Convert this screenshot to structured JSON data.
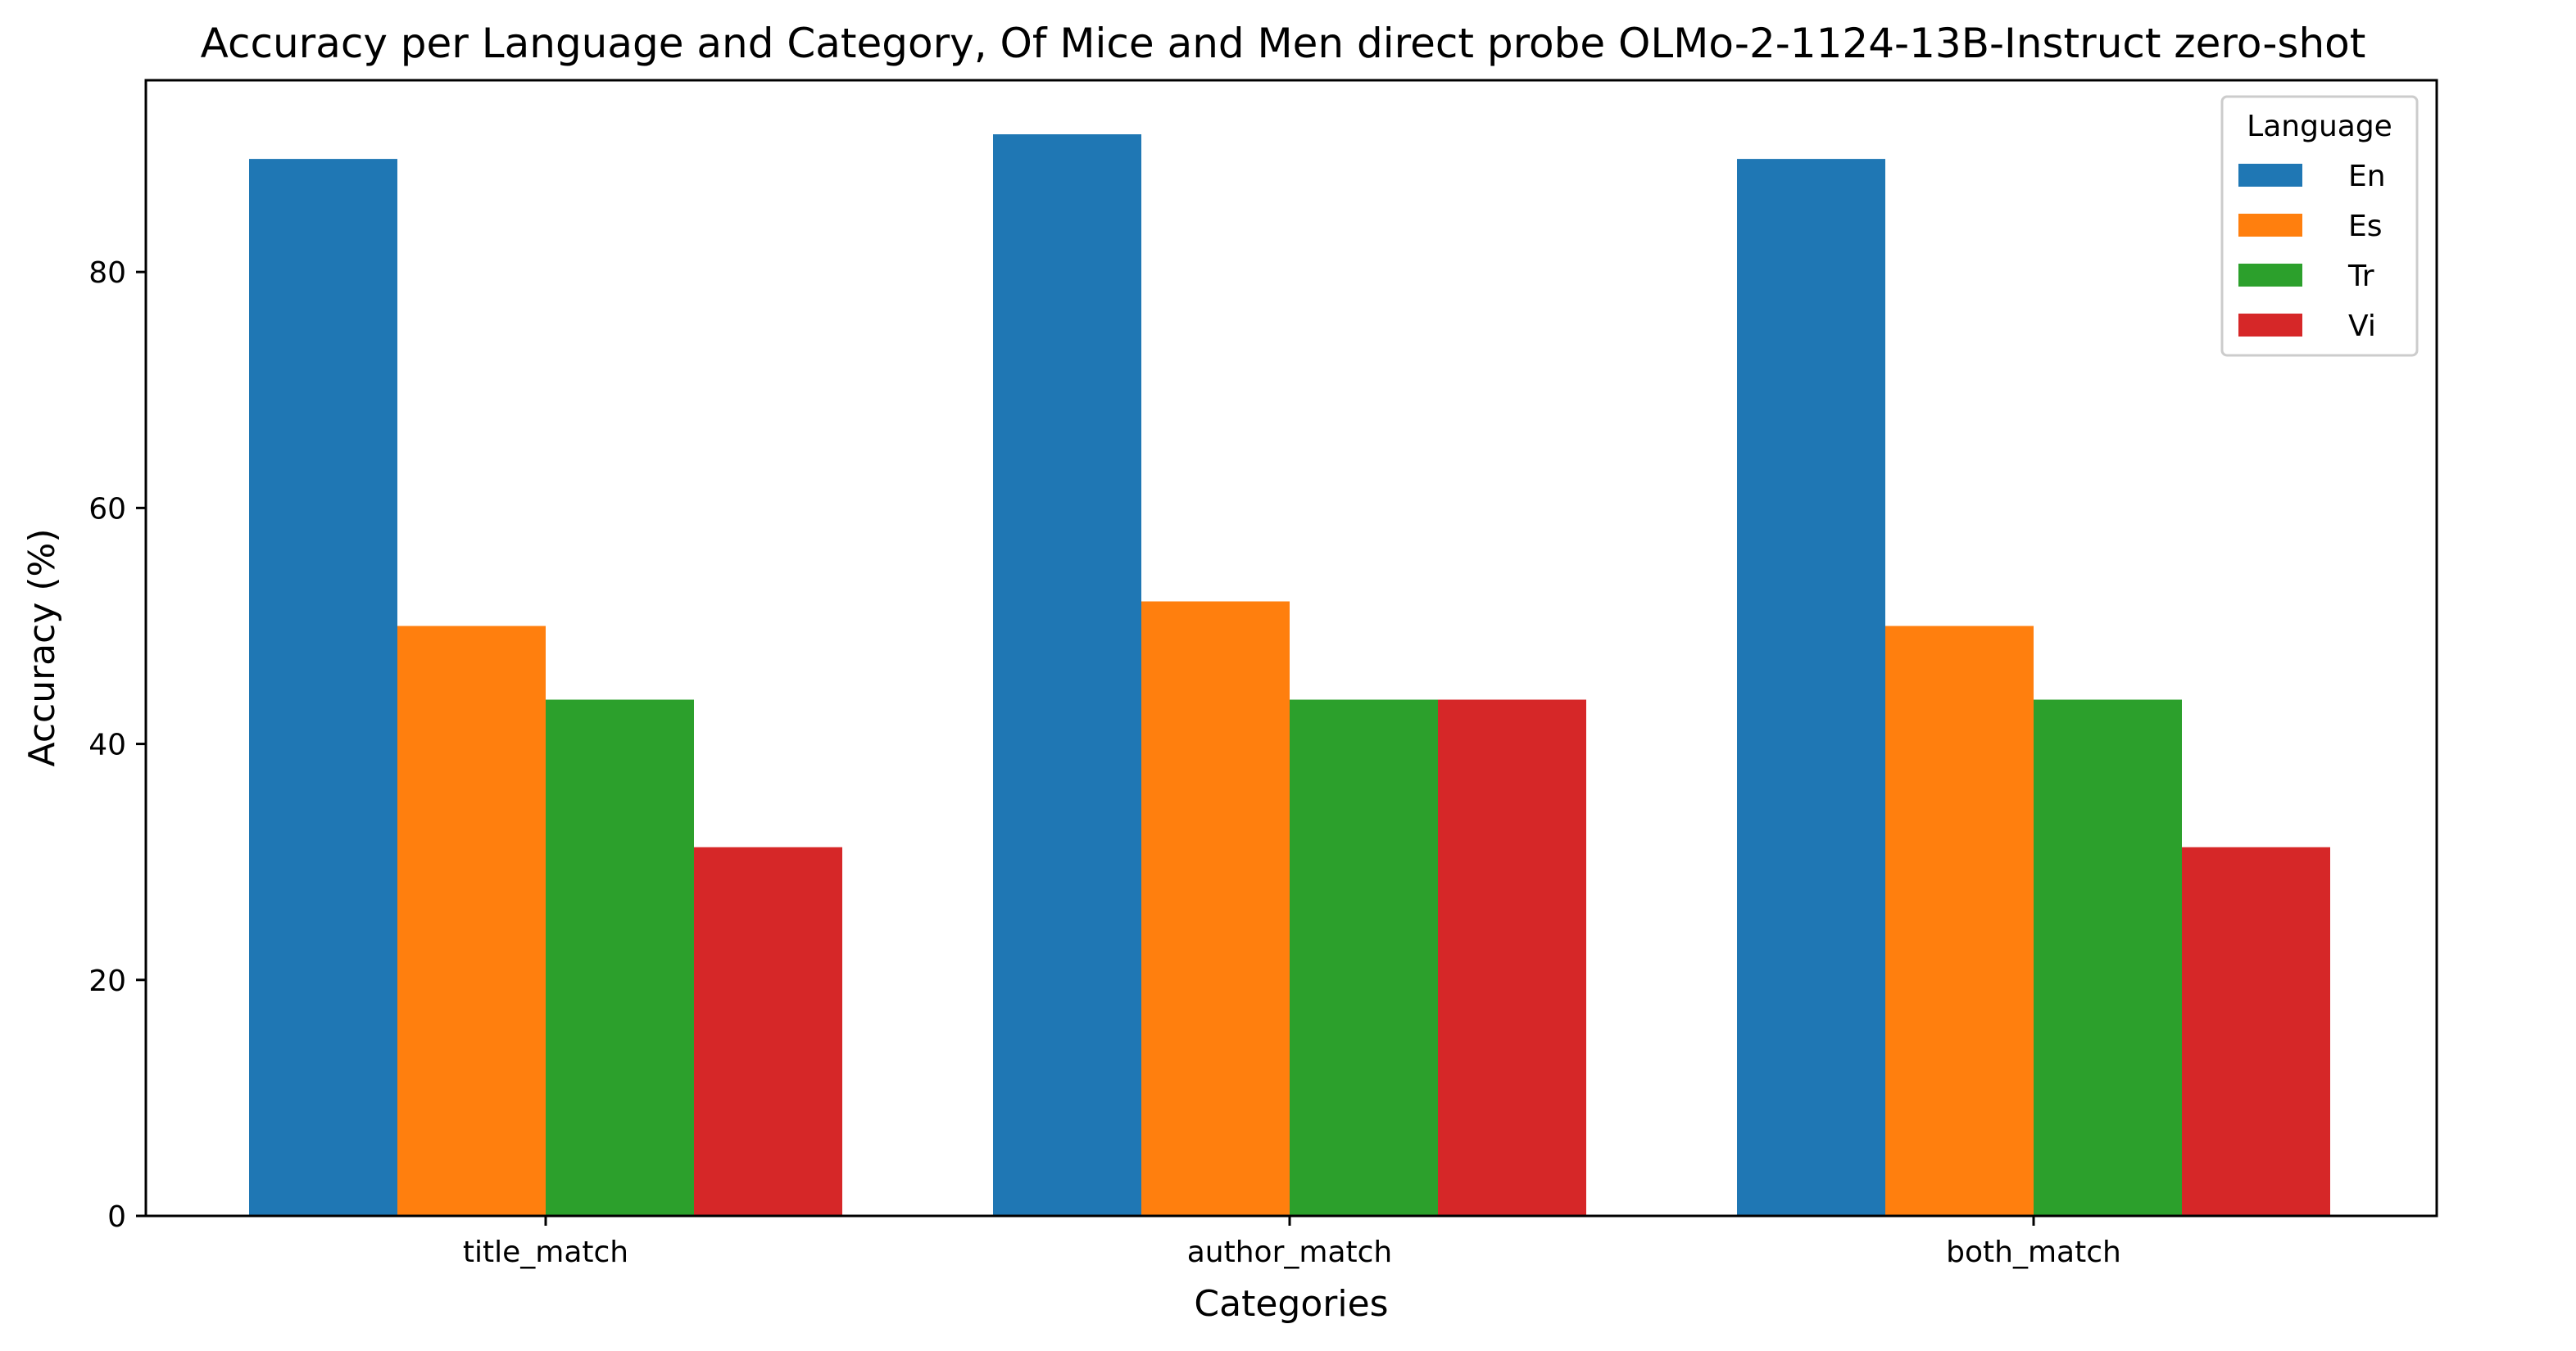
{
  "chart_data": {
    "type": "bar",
    "title": "Accuracy per Language and Category, Of Mice and Men direct probe OLMo-2-1124-13B-Instruct zero-shot",
    "xlabel": "Categories",
    "ylabel": "Accuracy (%)",
    "categories": [
      "title_match",
      "author_match",
      "both_match"
    ],
    "series": [
      {
        "name": "En",
        "color": "#1f77b4",
        "values": [
          89.58,
          91.67,
          89.58
        ]
      },
      {
        "name": "Es",
        "color": "#ff7f0e",
        "values": [
          50.0,
          52.08,
          50.0
        ]
      },
      {
        "name": "Tr",
        "color": "#2ca02c",
        "values": [
          43.75,
          43.75,
          43.75
        ]
      },
      {
        "name": "Vi",
        "color": "#d62728",
        "values": [
          31.25,
          43.75,
          31.25
        ]
      }
    ],
    "ylim": [
      0,
      96.25
    ],
    "yticks": [
      "0",
      "20",
      "40",
      "60",
      "80"
    ],
    "grid": false,
    "legend": {
      "title": "Language",
      "placement": "top-right"
    }
  }
}
